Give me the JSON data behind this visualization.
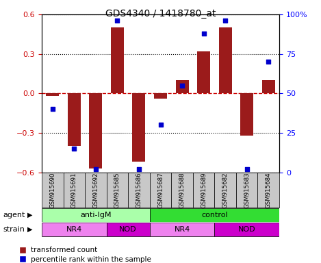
{
  "title": "GDS4340 / 1418780_at",
  "samples": [
    "GSM915690",
    "GSM915691",
    "GSM915692",
    "GSM915685",
    "GSM915686",
    "GSM915687",
    "GSM915688",
    "GSM915689",
    "GSM915682",
    "GSM915683",
    "GSM915684"
  ],
  "transformed_count": [
    -0.02,
    -0.4,
    -0.57,
    0.5,
    -0.52,
    -0.04,
    0.1,
    0.32,
    0.5,
    -0.32,
    0.1
  ],
  "percentile_rank": [
    40,
    15,
    2,
    96,
    2,
    30,
    55,
    88,
    96,
    2,
    70
  ],
  "ylim_left": [
    -0.6,
    0.6
  ],
  "ylim_right": [
    0,
    100
  ],
  "yticks_left": [
    -0.6,
    -0.3,
    0.0,
    0.3,
    0.6
  ],
  "yticks_right": [
    0,
    25,
    50,
    75,
    100
  ],
  "bar_color": "#9B1B1B",
  "dot_color": "#0000CC",
  "agent_groups": [
    {
      "label": "anti-IgM",
      "start": 0,
      "end": 5,
      "color": "#AAFFAA"
    },
    {
      "label": "control",
      "start": 5,
      "end": 11,
      "color": "#33DD33"
    }
  ],
  "strain_groups": [
    {
      "label": "NR4",
      "start": 0,
      "end": 3,
      "color": "#EE82EE"
    },
    {
      "label": "NOD",
      "start": 3,
      "end": 5,
      "color": "#CC00CC"
    },
    {
      "label": "NR4",
      "start": 5,
      "end": 8,
      "color": "#EE82EE"
    },
    {
      "label": "NOD",
      "start": 8,
      "end": 11,
      "color": "#CC00CC"
    }
  ],
  "legend_red_label": "transformed count",
  "legend_blue_label": "percentile rank within the sample",
  "row_label_agent": "agent",
  "row_label_strain": "strain"
}
